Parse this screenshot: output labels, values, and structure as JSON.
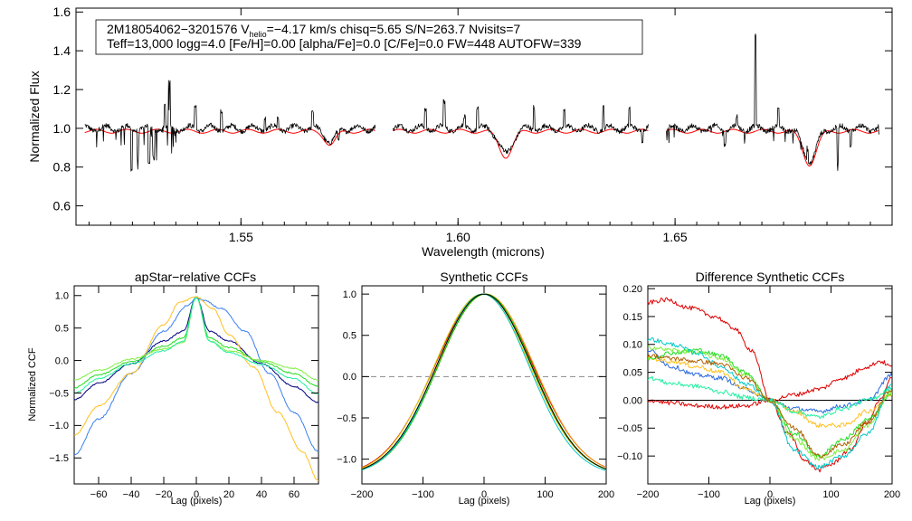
{
  "chart_data": [
    {
      "type": "line",
      "id": "spectrum",
      "xlabel": "Wavelength (microns)",
      "ylabel": "Normalized Flux",
      "xlim": [
        1.512,
        1.7
      ],
      "ylim": [
        0.5,
        1.62
      ],
      "xticks": [
        1.55,
        1.6,
        1.65
      ],
      "xtick_labels": [
        "1.55",
        "1.60",
        "1.65"
      ],
      "yticks": [
        0.6,
        0.8,
        1.0,
        1.2,
        1.4,
        1.6
      ],
      "ytick_labels": [
        "0.6",
        "0.8",
        "1.0",
        "1.2",
        "1.4",
        "1.6"
      ],
      "info": {
        "line1": "2M18054062−3201576  V",
        "sub": "helio",
        "line1_rest": "=−4.17 km/s  chisq=5.65  S/N=263.7  Nvisits=7",
        "line2": "Teff=13,000 logg=4.0 [Fe/H]=0.00 [alpha/Fe]=0.0 [C/Fe]=0.0 FW=448 AUTOFW=339"
      },
      "chips": [
        [
          1.514,
          1.581
        ],
        [
          1.585,
          1.644
        ],
        [
          1.648,
          1.697
        ]
      ],
      "series": [
        {
          "name": "observed",
          "color": "#000000",
          "continuum": 1.0,
          "noise": 0.025,
          "features": [
            {
              "x": 1.5248,
              "d": -0.22
            },
            {
              "x": 1.5262,
              "d": -0.13
            },
            {
              "x": 1.5288,
              "d": -0.2
            },
            {
              "x": 1.5299,
              "d": -0.15
            },
            {
              "x": 1.5325,
              "d": 0.11
            },
            {
              "x": 1.5335,
              "d": 0.22
            },
            {
              "x": 1.5395,
              "d": 0.12
            },
            {
              "x": 1.5455,
              "d": 0.1
            },
            {
              "x": 1.5555,
              "d": 0.06
            },
            {
              "x": 1.5585,
              "d": 0.05
            },
            {
              "x": 1.5665,
              "d": 0.08
            },
            {
              "x": 1.5725,
              "d": -0.04
            },
            {
              "x": 1.5925,
              "d": 0.1
            },
            {
              "x": 1.5968,
              "d": 0.13
            },
            {
              "x": 1.6015,
              "d": 0.05
            },
            {
              "x": 1.6045,
              "d": 0.1
            },
            {
              "x": 1.6175,
              "d": 0.12
            },
            {
              "x": 1.6245,
              "d": 0.08
            },
            {
              "x": 1.6335,
              "d": 0.11
            },
            {
              "x": 1.6395,
              "d": 0.09
            },
            {
              "x": 1.6425,
              "d": -0.05
            },
            {
              "x": 1.6615,
              "d": -0.07
            },
            {
              "x": 1.6642,
              "d": 0.05
            },
            {
              "x": 1.6685,
              "d": 0.46
            },
            {
              "x": 1.6738,
              "d": 0.08
            },
            {
              "x": 1.6805,
              "d": 0.07
            },
            {
              "x": 1.6875,
              "d": -0.19
            },
            {
              "x": 1.6905,
              "d": -0.08
            }
          ]
        },
        {
          "name": "model",
          "color": "#ff0000",
          "absorption": [
            {
              "x": 1.5706,
              "depth": 0.07,
              "width": 0.0018
            },
            {
              "x": 1.611,
              "depth": 0.13,
              "width": 0.0022
            },
            {
              "x": 1.681,
              "depth": 0.17,
              "width": 0.0022
            }
          ]
        }
      ]
    },
    {
      "type": "line",
      "id": "apstar_ccf",
      "title": "apStar−relative CCFs",
      "xlabel": "Lag (pixels)",
      "ylabel": "Normalized CCF",
      "xlim": [
        -75,
        75
      ],
      "ylim": [
        -1.9,
        1.15
      ],
      "xticks": [
        -60,
        -40,
        -20,
        0,
        20,
        40,
        60
      ],
      "xtick_labels": [
        "−60",
        "−40",
        "−20",
        "0",
        "20",
        "40",
        "60"
      ],
      "yticks": [
        1.0,
        0.5,
        0.0,
        -0.5,
        -1.0,
        -1.5
      ],
      "ytick_labels": [
        "1.0",
        "0.5",
        "0.0",
        "−0.5",
        "−1.0",
        "−1.5"
      ],
      "series": [
        {
          "name": "visit-1",
          "color": "#000080",
          "x": [
            -75,
            -60,
            -40,
            -20,
            -8,
            0,
            8,
            20,
            40,
            60,
            75
          ],
          "y": [
            -0.6,
            -0.35,
            -0.05,
            0.3,
            0.45,
            0.97,
            0.45,
            0.3,
            -0.05,
            -0.4,
            -0.65
          ]
        },
        {
          "name": "visit-2",
          "color": "#3a7ff0",
          "x": [
            -75,
            -60,
            -40,
            -20,
            -5,
            0,
            5,
            15,
            30,
            45,
            60,
            75
          ],
          "y": [
            -1.45,
            -0.9,
            -0.2,
            0.45,
            0.85,
            0.97,
            0.92,
            0.8,
            0.45,
            -0.2,
            -0.8,
            -1.4
          ]
        },
        {
          "name": "visit-3",
          "color": "#ffc020",
          "x": [
            -75,
            -60,
            -40,
            -20,
            -10,
            0,
            10,
            20,
            35,
            50,
            65,
            75
          ],
          "y": [
            -1.15,
            -0.7,
            -0.2,
            0.55,
            0.9,
            0.98,
            0.8,
            0.4,
            -0.1,
            -0.8,
            -1.4,
            -1.85
          ]
        },
        {
          "name": "visit-4",
          "color": "#22dd22",
          "x": [
            -75,
            -60,
            -40,
            -20,
            -8,
            0,
            8,
            20,
            40,
            60,
            75
          ],
          "y": [
            -0.42,
            -0.22,
            -0.02,
            0.22,
            0.35,
            0.97,
            0.35,
            0.2,
            -0.02,
            -0.2,
            -0.4
          ]
        },
        {
          "name": "visit-5",
          "color": "#80ee40",
          "x": [
            -75,
            -60,
            -40,
            -20,
            -8,
            0,
            8,
            20,
            40,
            60,
            75
          ],
          "y": [
            -0.3,
            -0.15,
            0.02,
            0.18,
            0.28,
            0.97,
            0.3,
            0.15,
            0.0,
            -0.12,
            -0.3
          ]
        },
        {
          "name": "visit-6",
          "color": "#20f0a0",
          "x": [
            -75,
            -60,
            -40,
            -20,
            -8,
            0,
            8,
            20,
            40,
            60,
            75
          ],
          "y": [
            -0.5,
            -0.28,
            -0.05,
            0.15,
            0.3,
            0.97,
            0.3,
            0.12,
            -0.06,
            -0.28,
            -0.52
          ]
        }
      ]
    },
    {
      "type": "line",
      "id": "synthetic_ccf",
      "title": "Synthetic CCFs",
      "xlabel": "Lag (pixels)",
      "xlim": [
        -200,
        200
      ],
      "ylim": [
        -1.3,
        1.1
      ],
      "xticks": [
        -200,
        -100,
        0,
        100,
        200
      ],
      "xtick_labels": [
        "−200",
        "−100",
        "0",
        "100",
        "200"
      ],
      "yticks": [
        1.0,
        0.5,
        0.0,
        -0.5,
        -1.0
      ],
      "ytick_labels": [
        "1.0",
        "0.5",
        "0.0",
        "−0.5",
        "−1.0"
      ],
      "zero_line": 0.0,
      "series": [
        {
          "name": "red",
          "color": "#e00000",
          "shape": "gauss",
          "peak": 1.0,
          "amp": 2.1,
          "sigma": 111,
          "offset": 0
        },
        {
          "name": "orange",
          "color": "#ff9000",
          "shape": "gauss",
          "peak": 1.0,
          "amp": 2.15,
          "sigma": 109,
          "offset": 3
        },
        {
          "name": "yellow",
          "color": "#ddcc00",
          "shape": "gauss",
          "peak": 1.0,
          "amp": 2.18,
          "sigma": 108,
          "offset": -3
        },
        {
          "name": "green",
          "color": "#00c000",
          "shape": "gauss",
          "peak": 1.0,
          "amp": 2.2,
          "sigma": 106,
          "offset": 2
        },
        {
          "name": "cyan",
          "color": "#00c8c8",
          "shape": "gauss",
          "peak": 1.0,
          "amp": 2.25,
          "sigma": 104,
          "offset": -2
        },
        {
          "name": "model",
          "color": "#000000",
          "shape": "gauss",
          "peak": 1.0,
          "amp": 2.2,
          "sigma": 107,
          "offset": 0
        }
      ]
    },
    {
      "type": "line",
      "id": "diff_ccf",
      "title": "Difference Synthetic CCFs",
      "xlabel": "Lag (pixels)",
      "xlim": [
        -200,
        200
      ],
      "ylim": [
        -0.15,
        0.205
      ],
      "xticks": [
        -200,
        -100,
        0,
        100,
        200
      ],
      "xtick_labels": [
        "−200",
        "−100",
        "0",
        "100",
        "200"
      ],
      "yticks": [
        0.2,
        0.15,
        0.1,
        0.05,
        0.0,
        -0.05,
        -0.1
      ],
      "ytick_labels": [
        "0.20",
        "0.15",
        "0.10",
        "0.05",
        "0.00",
        "−0.05",
        "−0.10"
      ],
      "zero_line": 0.0,
      "series": [
        {
          "name": "red-1",
          "color": "#e00000",
          "x": [
            -200,
            -170,
            -130,
            -90,
            -60,
            -30,
            0,
            30,
            60,
            80,
            100,
            130,
            160,
            180,
            200
          ],
          "y": [
            0.175,
            0.18,
            0.165,
            0.15,
            0.13,
            0.09,
            0.0,
            -0.06,
            -0.11,
            -0.125,
            -0.115,
            -0.09,
            -0.04,
            0.0,
            0.04
          ]
        },
        {
          "name": "red-2",
          "color": "#e00000",
          "x": [
            -200,
            -160,
            -120,
            -80,
            -40,
            0,
            40,
            80,
            120,
            160,
            180,
            200
          ],
          "y": [
            0.0,
            -0.005,
            -0.01,
            -0.012,
            -0.01,
            0.0,
            0.01,
            0.02,
            0.04,
            0.06,
            0.07,
            0.06
          ]
        },
        {
          "name": "blue",
          "color": "#2a6ae0",
          "x": [
            -200,
            -160,
            -120,
            -80,
            -40,
            0,
            40,
            80,
            120,
            160,
            200
          ],
          "y": [
            0.09,
            0.06,
            0.045,
            0.04,
            0.02,
            0.0,
            -0.015,
            -0.02,
            -0.01,
            0.0,
            0.045
          ]
        },
        {
          "name": "yellow",
          "color": "#ffc020",
          "x": [
            -200,
            -160,
            -120,
            -80,
            -40,
            0,
            40,
            80,
            120,
            160,
            200
          ],
          "y": [
            0.075,
            0.07,
            0.06,
            0.05,
            0.02,
            0.0,
            -0.02,
            -0.045,
            -0.045,
            -0.02,
            0.01
          ]
        },
        {
          "name": "green",
          "color": "#22dd22",
          "x": [
            -200,
            -160,
            -120,
            -80,
            -40,
            0,
            40,
            80,
            120,
            160,
            200
          ],
          "y": [
            0.075,
            0.085,
            0.09,
            0.08,
            0.05,
            0.0,
            -0.06,
            -0.1,
            -0.07,
            -0.035,
            0.01
          ]
        },
        {
          "name": "lightgreen",
          "color": "#80ee40",
          "x": [
            -200,
            -160,
            -120,
            -80,
            -40,
            0,
            40,
            80,
            120,
            160,
            200
          ],
          "y": [
            0.095,
            0.09,
            0.085,
            0.075,
            0.045,
            0.0,
            -0.07,
            -0.105,
            -0.09,
            -0.045,
            0.015
          ]
        },
        {
          "name": "cyan",
          "color": "#00c8c8",
          "x": [
            -200,
            -160,
            -120,
            -80,
            -40,
            0,
            40,
            80,
            120,
            160,
            200
          ],
          "y": [
            0.11,
            0.1,
            0.085,
            0.06,
            0.03,
            0.0,
            -0.09,
            -0.12,
            -0.1,
            -0.06,
            0.03
          ]
        },
        {
          "name": "teal",
          "color": "#20f0a0",
          "x": [
            -200,
            -160,
            -120,
            -80,
            -40,
            0,
            40,
            80,
            120,
            160,
            200
          ],
          "y": [
            0.04,
            0.03,
            0.025,
            0.015,
            0.005,
            0.0,
            -0.02,
            -0.03,
            -0.015,
            0.0,
            0.02
          ]
        },
        {
          "name": "brown",
          "color": "#b06000",
          "x": [
            -200,
            -160,
            -120,
            -80,
            -40,
            0,
            40,
            80,
            120,
            160,
            200
          ],
          "y": [
            0.08,
            0.075,
            0.07,
            0.065,
            0.04,
            0.0,
            -0.05,
            -0.1,
            -0.08,
            -0.04,
            0.02
          ]
        }
      ]
    }
  ]
}
